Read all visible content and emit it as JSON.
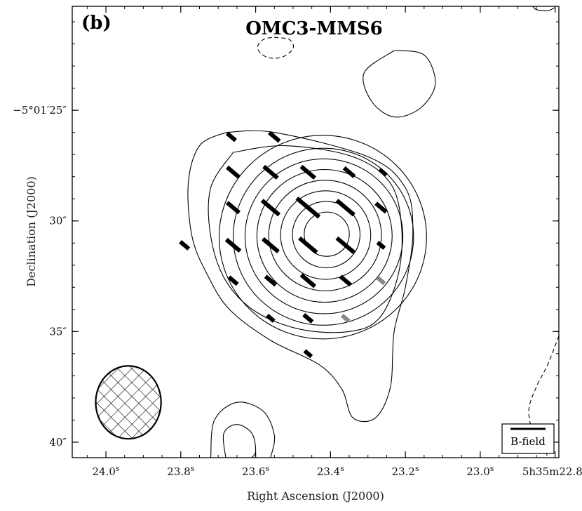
{
  "chart_data": {
    "type": "contour",
    "panel_label": "(b)",
    "title": "OMC3-MMS6",
    "xlabel": "Right Ascension (J2000)",
    "ylabel": "Declination (J2000)",
    "x_ticks": [
      {
        "value": 24.0,
        "label": "24.0",
        "sup": "s"
      },
      {
        "value": 23.8,
        "label": "23.8",
        "sup": "s"
      },
      {
        "value": 23.6,
        "label": "23.6",
        "sup": "s"
      },
      {
        "value": 23.4,
        "label": "23.4",
        "sup": "s"
      },
      {
        "value": 23.2,
        "label": "23.2",
        "sup": "s"
      },
      {
        "value": 23.0,
        "label": "23.0",
        "sup": "s"
      },
      {
        "value": 22.8,
        "label": "5h35m22.8s"
      }
    ],
    "y_ticks": [
      {
        "value": 25,
        "label": "−5°01′25″"
      },
      {
        "value": 30,
        "label": "30″"
      },
      {
        "value": 35,
        "label": "35″"
      },
      {
        "value": 40,
        "label": "40″"
      }
    ],
    "xlim": [
      24.09,
      22.79
    ],
    "ylim": [
      40.7,
      20.3
    ],
    "legend": {
      "label": "B-field",
      "position": "bottom-right"
    },
    "peak": {
      "ra": 23.41,
      "dec": 30.6
    },
    "contour_radii_arcsec": [
      1.0,
      1.5,
      2.0,
      2.5,
      3.0,
      3.5,
      4.0,
      4.6
    ],
    "outer_contours": [
      {
        "name": "outer-envelope",
        "style": "solid",
        "points": [
          [
            23.68,
            26.0
          ],
          [
            23.55,
            26.0
          ],
          [
            23.3,
            27.1
          ],
          [
            23.2,
            28.5
          ],
          [
            23.18,
            30.5
          ],
          [
            23.2,
            33.0
          ],
          [
            23.23,
            35.0
          ],
          [
            23.24,
            37.5
          ],
          [
            23.28,
            38.9
          ],
          [
            23.34,
            38.9
          ],
          [
            23.37,
            37.6
          ],
          [
            23.43,
            36.5
          ],
          [
            23.56,
            35.4
          ],
          [
            23.67,
            34.0
          ],
          [
            23.73,
            32.4
          ],
          [
            23.77,
            30.7
          ],
          [
            23.78,
            28.3
          ],
          [
            23.75,
            26.6
          ],
          [
            23.68,
            26.0
          ]
        ]
      },
      {
        "name": "second-envelope",
        "style": "solid",
        "points": [
          [
            23.66,
            26.9
          ],
          [
            23.52,
            26.6
          ],
          [
            23.34,
            27.1
          ],
          [
            23.24,
            28.3
          ],
          [
            23.21,
            30.3
          ],
          [
            23.22,
            32.5
          ],
          [
            23.27,
            34.4
          ],
          [
            23.35,
            35.0
          ],
          [
            23.48,
            34.9
          ],
          [
            23.6,
            34.1
          ],
          [
            23.68,
            32.7
          ],
          [
            23.72,
            30.7
          ],
          [
            23.72,
            28.5
          ],
          [
            23.66,
            26.9
          ]
        ]
      },
      {
        "name": "north-east-blob",
        "style": "solid",
        "points": [
          [
            23.23,
            22.3
          ],
          [
            23.15,
            22.5
          ],
          [
            23.12,
            23.8
          ],
          [
            23.16,
            24.9
          ],
          [
            23.23,
            25.3
          ],
          [
            23.29,
            24.6
          ],
          [
            23.31,
            23.3
          ],
          [
            23.23,
            22.3
          ]
        ]
      },
      {
        "name": "south-blob-outer",
        "style": "solid",
        "points": [
          [
            23.72,
            40.7
          ],
          [
            23.71,
            39.0
          ],
          [
            23.65,
            38.2
          ],
          [
            23.58,
            38.6
          ],
          [
            23.55,
            39.7
          ],
          [
            23.56,
            40.7
          ]
        ]
      },
      {
        "name": "south-blob-inner",
        "style": "solid",
        "points": [
          [
            23.68,
            40.7
          ],
          [
            23.685,
            39.6
          ],
          [
            23.65,
            39.2
          ],
          [
            23.61,
            39.6
          ],
          [
            23.6,
            40.4
          ],
          [
            23.61,
            40.7
          ]
        ]
      },
      {
        "name": "north-top-arc",
        "style": "solid",
        "points": [
          [
            22.86,
            20.3
          ],
          [
            22.85,
            20.45
          ],
          [
            22.82,
            20.5
          ],
          [
            22.8,
            20.35
          ]
        ]
      },
      {
        "name": "negative-blob",
        "style": "dashed",
        "points": [
          [
            23.55,
            21.7
          ],
          [
            23.51,
            21.8
          ],
          [
            23.5,
            22.2
          ],
          [
            23.53,
            22.6
          ],
          [
            23.57,
            22.6
          ],
          [
            23.595,
            22.2
          ],
          [
            23.58,
            21.8
          ],
          [
            23.55,
            21.7
          ]
        ]
      },
      {
        "name": "negative-edge",
        "style": "dashed",
        "points": [
          [
            22.79,
            35.2
          ],
          [
            22.82,
            36.5
          ],
          [
            22.85,
            37.5
          ],
          [
            22.87,
            38.5
          ],
          [
            22.86,
            39.5
          ],
          [
            22.83,
            40.2
          ],
          [
            22.82,
            40.7
          ]
        ]
      }
    ],
    "vectors": [
      {
        "ra": 23.665,
        "dec": 26.2,
        "angle": 40,
        "length": 0.5,
        "color": "#000000"
      },
      {
        "ra": 23.55,
        "dec": 26.2,
        "angle": 40,
        "length": 0.6,
        "color": "#000000"
      },
      {
        "ra": 23.66,
        "dec": 27.8,
        "angle": 40,
        "length": 0.7,
        "color": "#000000"
      },
      {
        "ra": 23.56,
        "dec": 27.8,
        "angle": 40,
        "length": 0.8,
        "color": "#000000"
      },
      {
        "ra": 23.46,
        "dec": 27.8,
        "angle": 40,
        "length": 0.8,
        "color": "#000000"
      },
      {
        "ra": 23.35,
        "dec": 27.8,
        "angle": 40,
        "length": 0.6,
        "color": "#000000"
      },
      {
        "ra": 23.26,
        "dec": 27.8,
        "angle": 40,
        "length": 0.4,
        "color": "#000000"
      },
      {
        "ra": 23.66,
        "dec": 29.4,
        "angle": 40,
        "length": 0.7,
        "color": "#000000"
      },
      {
        "ra": 23.56,
        "dec": 29.4,
        "angle": 40,
        "length": 1.0,
        "color": "#000000"
      },
      {
        "ra": 23.46,
        "dec": 29.4,
        "angle": 40,
        "length": 1.3,
        "color": "#000000"
      },
      {
        "ra": 23.36,
        "dec": 29.4,
        "angle": 40,
        "length": 1.0,
        "color": "#000000"
      },
      {
        "ra": 23.265,
        "dec": 29.4,
        "angle": 40,
        "length": 0.6,
        "color": "#000000"
      },
      {
        "ra": 23.79,
        "dec": 31.1,
        "angle": 40,
        "length": 0.5,
        "color": "#000000"
      },
      {
        "ra": 23.66,
        "dec": 31.1,
        "angle": 40,
        "length": 0.8,
        "color": "#000000"
      },
      {
        "ra": 23.56,
        "dec": 31.1,
        "angle": 40,
        "length": 0.9,
        "color": "#000000"
      },
      {
        "ra": 23.46,
        "dec": 31.1,
        "angle": 40,
        "length": 1.0,
        "color": "#000000"
      },
      {
        "ra": 23.36,
        "dec": 31.1,
        "angle": 40,
        "length": 1.0,
        "color": "#000000"
      },
      {
        "ra": 23.265,
        "dec": 31.1,
        "angle": 40,
        "length": 0.4,
        "color": "#000000"
      },
      {
        "ra": 23.66,
        "dec": 32.7,
        "angle": 40,
        "length": 0.5,
        "color": "#000000"
      },
      {
        "ra": 23.56,
        "dec": 32.7,
        "angle": 40,
        "length": 0.6,
        "color": "#000000"
      },
      {
        "ra": 23.46,
        "dec": 32.7,
        "angle": 40,
        "length": 0.8,
        "color": "#000000"
      },
      {
        "ra": 23.36,
        "dec": 32.7,
        "angle": 40,
        "length": 0.6,
        "color": "#000000"
      },
      {
        "ra": 23.265,
        "dec": 32.7,
        "angle": 40,
        "length": 0.4,
        "color": "#888888"
      },
      {
        "ra": 23.56,
        "dec": 34.4,
        "angle": 40,
        "length": 0.4,
        "color": "#000000"
      },
      {
        "ra": 23.46,
        "dec": 34.4,
        "angle": 40,
        "length": 0.5,
        "color": "#000000"
      },
      {
        "ra": 23.36,
        "dec": 34.4,
        "angle": 40,
        "length": 0.4,
        "color": "#888888"
      },
      {
        "ra": 23.46,
        "dec": 36.0,
        "angle": 40,
        "length": 0.4,
        "color": "#000000"
      }
    ],
    "beam": {
      "ra": 23.94,
      "dec": 38.2,
      "width_arcsec": 2.9,
      "height_arcsec": 3.4,
      "pattern": "cross-hatch"
    }
  }
}
